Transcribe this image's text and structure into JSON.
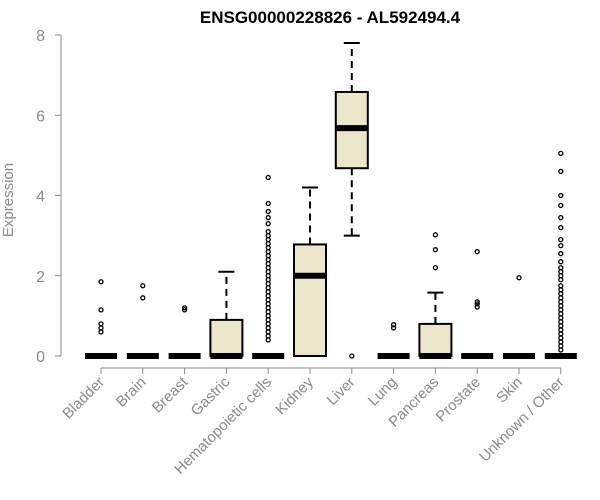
{
  "chart_data": {
    "type": "box",
    "title": "ENSG00000228826 - AL592494.4",
    "xlabel": "",
    "ylabel": "Expression",
    "ylim": [
      0,
      8
    ],
    "yticks": [
      0,
      2,
      4,
      6,
      8
    ],
    "colors": {
      "box_fill": "#ede6cc",
      "stroke": "#000000",
      "axis": "#8a8a8a"
    },
    "categories": [
      "Bladder",
      "Brain",
      "Breast",
      "Gastric",
      "Hematopoietic cells",
      "Kidney",
      "Liver",
      "Lung",
      "Pancreas",
      "Prostate",
      "Skin",
      "Unknown / Other"
    ],
    "boxes": [
      {
        "category": "Bladder",
        "min": 0,
        "q1": 0,
        "median": 0,
        "q3": 0,
        "max": 0,
        "outliers": [
          0.6,
          0.7,
          0.8,
          1.15,
          1.85
        ]
      },
      {
        "category": "Brain",
        "min": 0,
        "q1": 0,
        "median": 0,
        "q3": 0,
        "max": 0,
        "outliers": [
          1.45,
          1.75
        ]
      },
      {
        "category": "Breast",
        "min": 0,
        "q1": 0,
        "median": 0,
        "q3": 0,
        "max": 0,
        "outliers": [
          1.15,
          1.2
        ]
      },
      {
        "category": "Gastric",
        "min": 0,
        "q1": 0,
        "median": 0,
        "q3": 0.9,
        "max": 2.1,
        "outliers": []
      },
      {
        "category": "Hematopoietic cells",
        "min": 0,
        "q1": 0,
        "median": 0,
        "q3": 0,
        "max": 0,
        "outliers": [
          0.4,
          0.5,
          0.6,
          0.7,
          0.8,
          0.9,
          1.0,
          1.1,
          1.2,
          1.3,
          1.4,
          1.5,
          1.6,
          1.7,
          1.8,
          1.9,
          2.0,
          2.1,
          2.2,
          2.3,
          2.4,
          2.5,
          2.6,
          2.7,
          2.8,
          2.9,
          3.0,
          3.1,
          3.3,
          3.45,
          3.6,
          3.8,
          4.45
        ]
      },
      {
        "category": "Kidney",
        "min": 0,
        "q1": 0,
        "median": 2.0,
        "q3": 2.78,
        "max": 4.2,
        "outliers": []
      },
      {
        "category": "Liver",
        "min": 3.0,
        "q1": 4.68,
        "median": 5.68,
        "q3": 6.58,
        "max": 7.8,
        "outliers": [
          0
        ]
      },
      {
        "category": "Lung",
        "min": 0,
        "q1": 0,
        "median": 0,
        "q3": 0,
        "max": 0,
        "outliers": [
          0.7,
          0.78
        ]
      },
      {
        "category": "Pancreas",
        "min": 0,
        "q1": 0,
        "median": 0,
        "q3": 0.8,
        "max": 1.58,
        "outliers": [
          2.2,
          2.65,
          3.02
        ]
      },
      {
        "category": "Prostate",
        "min": 0,
        "q1": 0,
        "median": 0,
        "q3": 0,
        "max": 0,
        "outliers": [
          1.22,
          1.3,
          1.35,
          2.6
        ]
      },
      {
        "category": "Skin",
        "min": 0,
        "q1": 0,
        "median": 0,
        "q3": 0,
        "max": 0,
        "outliers": [
          1.95
        ]
      },
      {
        "category": "Unknown / Other",
        "min": 0,
        "q1": 0,
        "median": 0,
        "q3": 0,
        "max": 0,
        "outliers": [
          0.15,
          0.25,
          0.35,
          0.45,
          0.55,
          0.65,
          0.75,
          0.85,
          0.95,
          1.05,
          1.15,
          1.25,
          1.35,
          1.45,
          1.55,
          1.65,
          1.75,
          1.9,
          2.0,
          2.1,
          2.2,
          2.35,
          2.55,
          2.75,
          2.9,
          3.2,
          3.45,
          3.75,
          4.0,
          4.6,
          5.05
        ]
      }
    ]
  }
}
